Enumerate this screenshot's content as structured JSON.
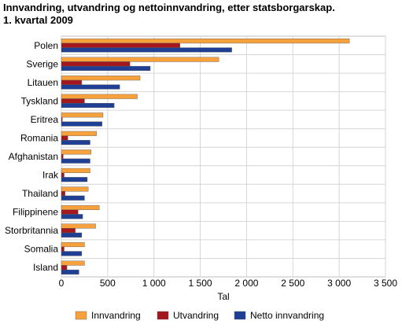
{
  "chart_data": {
    "type": "bar",
    "orientation": "horizontal",
    "title_line1": "Innvandring, utvandring og nettoinnvandring, etter statsborgarskap.",
    "title_line2": "1. kvartal 2009",
    "xlabel": "Tal",
    "ylabel": "",
    "xlim": [
      0,
      3500
    ],
    "xticks": [
      0,
      500,
      1000,
      1500,
      2000,
      2500,
      3000,
      3500
    ],
    "xtick_labels": [
      "0",
      "500",
      "1 000",
      "1 500",
      "2 000",
      "2 500",
      "3 000",
      "3 500"
    ],
    "grid": true,
    "legend_position": "bottom",
    "categories": [
      "Polen",
      "Sverige",
      "Litauen",
      "Tyskland",
      "Eritrea",
      "Romania",
      "Afghanistan",
      "Irak",
      "Thailand",
      "Filippinene",
      "Storbritannia",
      "Somalia",
      "Island"
    ],
    "series": [
      {
        "name": "Innvandring",
        "color": "#f7a13d",
        "values": [
          3110,
          1700,
          850,
          820,
          450,
          380,
          320,
          310,
          290,
          410,
          370,
          250,
          250
        ]
      },
      {
        "name": "Utvandring",
        "color": "#a3171d",
        "values": [
          1280,
          740,
          220,
          250,
          10,
          70,
          20,
          30,
          40,
          180,
          150,
          30,
          60
        ]
      },
      {
        "name": "Netto innvandring",
        "color": "#1f3f94",
        "values": [
          1840,
          960,
          630,
          570,
          440,
          310,
          310,
          280,
          250,
          230,
          220,
          220,
          190
        ]
      }
    ]
  }
}
